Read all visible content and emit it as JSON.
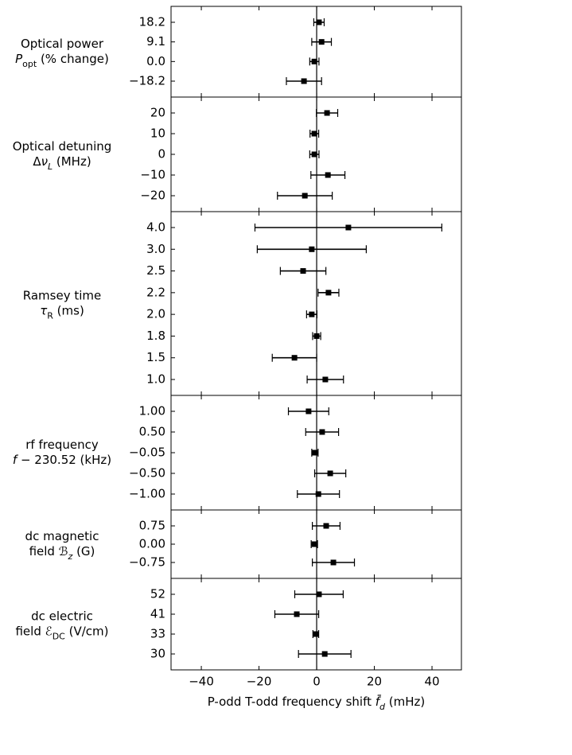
{
  "chart_data": [
    {
      "type": "errorbar",
      "ylabel": [
        [
          {
            "text": "Optical power"
          }
        ],
        [
          {
            "text": "P",
            "style": "italic"
          },
          {
            "text": "opt",
            "style": "sub"
          },
          {
            "text": " (% change)"
          }
        ]
      ],
      "categories": [
        "18.2",
        "9.1",
        "0.0",
        "−18.2"
      ],
      "values": [
        0.8,
        1.7,
        -0.8,
        -4.4
      ],
      "errors": [
        1.8,
        3.4,
        1.6,
        6.1
      ],
      "color": "#000000"
    },
    {
      "type": "errorbar",
      "ylabel": [
        [
          {
            "text": "Optical detuning"
          }
        ],
        [
          {
            "text": "Δ"
          },
          {
            "text": "ν",
            "style": "italic"
          },
          {
            "text": "L",
            "style": "italic-sub"
          },
          {
            "text": " (MHz)"
          }
        ]
      ],
      "categories": [
        "20",
        "10",
        "0",
        "−10",
        "−20"
      ],
      "values": [
        3.6,
        -0.8,
        -0.8,
        3.9,
        -4.1
      ],
      "errors": [
        3.7,
        1.5,
        1.6,
        5.9,
        9.5
      ],
      "color": "#000000"
    },
    {
      "type": "errorbar",
      "ylabel": [
        [
          {
            "text": "Ramsey time"
          }
        ],
        [
          {
            "text": "τ",
            "style": "italic"
          },
          {
            "text": "R",
            "style": "sub"
          },
          {
            "text": " (ms)"
          }
        ]
      ],
      "categories": [
        "4.0",
        "3.0",
        "2.5",
        "2.2",
        "2.0",
        "1.8",
        "1.5",
        "1.0"
      ],
      "values": [
        11.0,
        -1.7,
        -4.7,
        4.1,
        -1.7,
        0.0,
        -7.7,
        3.0
      ],
      "errors": [
        32.4,
        18.9,
        7.9,
        3.6,
        1.8,
        1.4,
        7.7,
        6.3
      ],
      "color": "#000000"
    },
    {
      "type": "errorbar",
      "ylabel": [
        [
          {
            "text": "rf frequency"
          }
        ],
        [
          {
            "text": "f",
            "style": "italic"
          },
          {
            "text": " − 230.52 (kHz)"
          }
        ]
      ],
      "categories": [
        "1.00",
        "0.50",
        "−0.05",
        "−0.50",
        "−1.00"
      ],
      "values": [
        -2.8,
        1.9,
        -0.6,
        4.7,
        0.6
      ],
      "errors": [
        7.0,
        5.7,
        1.1,
        5.4,
        7.3
      ],
      "color": "#000000"
    },
    {
      "type": "errorbar",
      "ylabel": [
        [
          {
            "text": "dc magnetic"
          }
        ],
        [
          {
            "text": "field "
          },
          {
            "text": "ℬ",
            "style": "italic"
          },
          {
            "text": "z",
            "style": "italic-sub"
          },
          {
            "text": " (G)"
          }
        ]
      ],
      "categories": [
        "0.75",
        "0.00",
        "−0.75"
      ],
      "values": [
        3.3,
        -0.8,
        5.8
      ],
      "errors": [
        4.8,
        1.1,
        7.3
      ],
      "color": "#000000"
    },
    {
      "type": "errorbar",
      "ylabel": [
        [
          {
            "text": "dc electric"
          }
        ],
        [
          {
            "text": "field "
          },
          {
            "text": "ℰ",
            "style": "italic"
          },
          {
            "text": "DC",
            "style": "sub"
          },
          {
            "text": " (V/cm)"
          }
        ]
      ],
      "categories": [
        "52",
        "41",
        "33",
        "30"
      ],
      "values": [
        0.8,
        -6.9,
        -0.3,
        2.8
      ],
      "errors": [
        8.4,
        7.6,
        1.0,
        9.1
      ],
      "color": "#000000",
      "xlabel": [
        {
          "text": "P-odd T-odd frequency shift "
        },
        {
          "text": "f̄",
          "style": "italic"
        },
        {
          "text": "d",
          "style": "italic-sub"
        },
        {
          "text": " (mHz)"
        }
      ],
      "xlim": [
        -50.5,
        50.2
      ],
      "xticks": [
        {
          "value": -40,
          "label": "−40"
        },
        {
          "value": -20,
          "label": "−20"
        },
        0,
        20,
        40
      ],
      "vline": 0
    }
  ]
}
